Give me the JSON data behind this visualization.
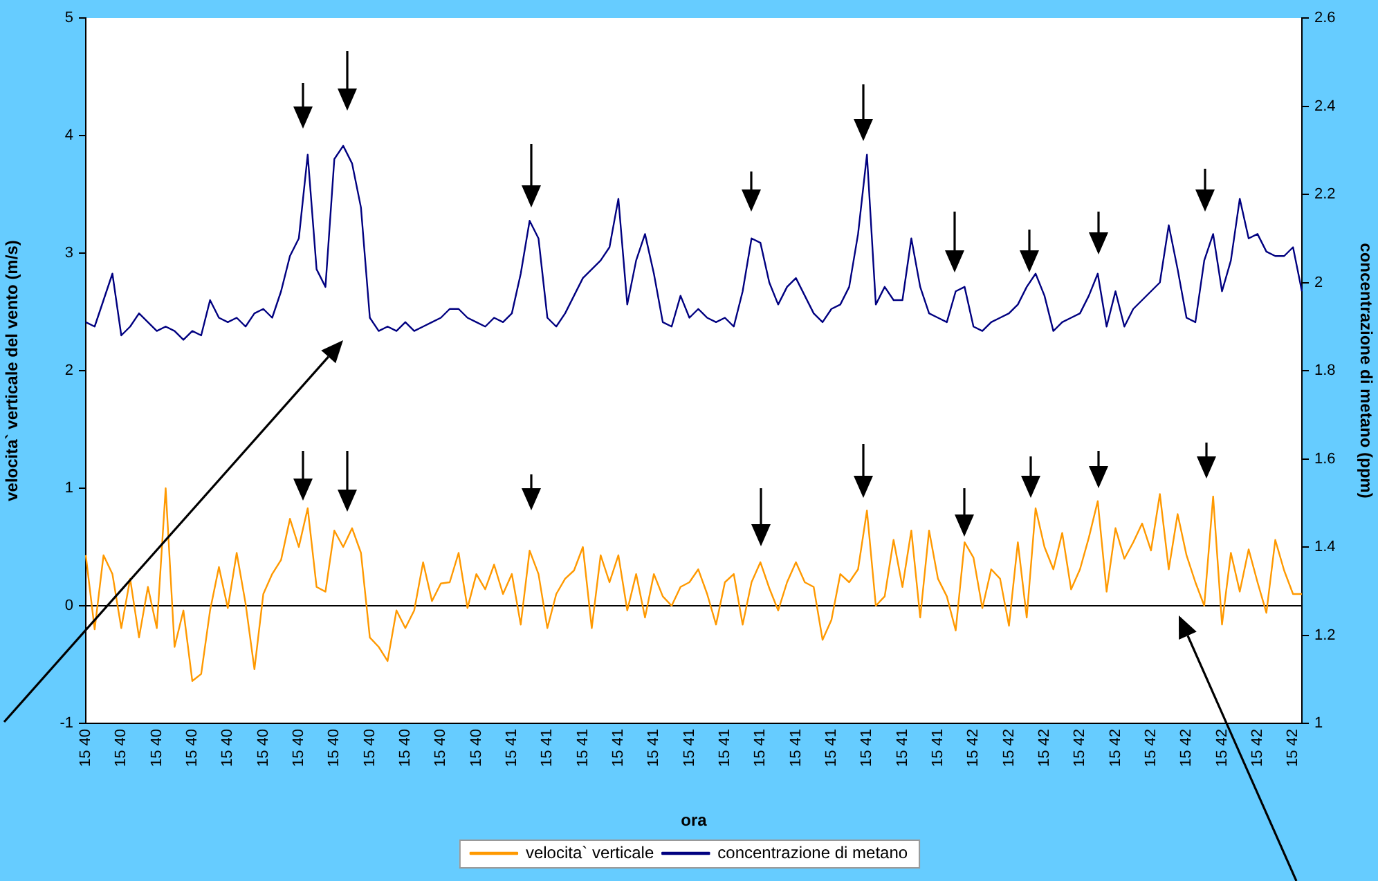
{
  "chart_data": {
    "type": "line",
    "xlabel": "ora",
    "ylabel": "velocita` verticale del vento (m/s)",
    "y2label": "concentrazione di metano (ppm)",
    "categories": [
      "15 40",
      null,
      null,
      null,
      "15 40",
      null,
      null,
      null,
      "15 40",
      null,
      null,
      null,
      "15 40",
      null,
      null,
      null,
      "15 40",
      null,
      null,
      null,
      "15 40",
      null,
      null,
      null,
      "15 40",
      null,
      null,
      null,
      "15 40",
      null,
      null,
      null,
      "15 40",
      null,
      null,
      null,
      "15 40",
      null,
      null,
      null,
      "15 40",
      null,
      null,
      null,
      "15 40",
      null,
      null,
      null,
      "15 41",
      null,
      null,
      null,
      "15 41",
      null,
      null,
      null,
      "15 41",
      null,
      null,
      null,
      "15 41",
      null,
      null,
      null,
      "15 41",
      null,
      null,
      null,
      "15 41",
      null,
      null,
      null,
      "15 41",
      null,
      null,
      null,
      "15 41",
      null,
      null,
      null,
      "15 41",
      null,
      null,
      null,
      "15 41",
      null,
      null,
      null,
      "15 41",
      null,
      null,
      null,
      "15 41",
      null,
      null,
      null,
      "15 41",
      null,
      null,
      null,
      "15 42",
      null,
      null,
      null,
      "15 42",
      null,
      null,
      null,
      "15 42",
      null,
      null,
      null,
      "15 42",
      null,
      null,
      null,
      "15 42",
      null,
      null,
      null,
      "15 42",
      null,
      null,
      null,
      "15 42",
      null,
      null,
      null,
      "15 42",
      null,
      null,
      null,
      "15 42",
      null,
      null,
      null,
      "15 42",
      null
    ],
    "series": [
      {
        "name": "velocita` verticale",
        "color": "#ff9900",
        "axis": "y",
        "values": [
          0.43,
          -0.2,
          0.43,
          0.27,
          -0.19,
          0.23,
          -0.27,
          0.16,
          -0.19,
          1.0,
          -0.35,
          -0.04,
          -0.64,
          -0.58,
          -0.04,
          0.33,
          -0.02,
          0.45,
          0.02,
          -0.54,
          0.1,
          0.27,
          0.39,
          0.74,
          0.5,
          0.83,
          0.16,
          0.12,
          0.64,
          0.5,
          0.66,
          0.45,
          -0.27,
          -0.35,
          -0.47,
          -0.04,
          -0.19,
          -0.04,
          0.37,
          0.04,
          0.19,
          0.2,
          0.45,
          -0.02,
          0.27,
          0.14,
          0.35,
          0.1,
          0.27,
          -0.16,
          0.47,
          0.27,
          -0.19,
          0.1,
          0.23,
          0.3,
          0.5,
          -0.19,
          0.43,
          0.2,
          0.43,
          -0.04,
          0.27,
          -0.1,
          0.27,
          0.08,
          0,
          0.16,
          0.2,
          0.31,
          0.1,
          -0.16,
          0.2,
          0.27,
          -0.16,
          0.2,
          0.37,
          0.15,
          -0.04,
          0.2,
          0.37,
          0.2,
          0.16,
          -0.29,
          -0.12,
          0.27,
          0.2,
          0.31,
          0.81,
          0,
          0.08,
          0.56,
          0.16,
          0.64,
          -0.1,
          0.64,
          0.23,
          0.08,
          -0.21,
          0.54,
          0.41,
          -0.02,
          0.31,
          0.23,
          -0.17,
          0.54,
          -0.1,
          0.83,
          0.5,
          0.31,
          0.62,
          0.14,
          0.31,
          0.58,
          0.89,
          0.12,
          0.66,
          0.4,
          0.54,
          0.7,
          0.47,
          0.95,
          0.31,
          0.78,
          0.43,
          0.2,
          0,
          0.93,
          -0.16,
          0.45,
          0.12,
          0.48,
          0.2,
          -0.06,
          0.56,
          0.3,
          0.1,
          0.1
        ]
      },
      {
        "name": "concentrazione di metano",
        "color": "#000080",
        "axis": "y2",
        "values": [
          1.91,
          1.9,
          1.96,
          2.02,
          1.88,
          1.9,
          1.93,
          1.91,
          1.89,
          1.9,
          1.89,
          1.87,
          1.89,
          1.88,
          1.96,
          1.92,
          1.91,
          1.92,
          1.9,
          1.93,
          1.94,
          1.92,
          1.98,
          2.06,
          2.1,
          2.29,
          2.03,
          1.99,
          2.28,
          2.31,
          2.27,
          2.17,
          1.92,
          1.89,
          1.9,
          1.89,
          1.91,
          1.89,
          1.9,
          1.91,
          1.92,
          1.94,
          1.94,
          1.92,
          1.91,
          1.9,
          1.92,
          1.91,
          1.93,
          2.02,
          2.14,
          2.1,
          1.92,
          1.9,
          1.93,
          1.97,
          2.01,
          2.03,
          2.05,
          2.08,
          2.19,
          1.95,
          2.05,
          2.11,
          2.02,
          1.91,
          1.9,
          1.97,
          1.92,
          1.94,
          1.92,
          1.91,
          1.92,
          1.9,
          1.98,
          2.1,
          2.09,
          2.0,
          1.95,
          1.99,
          2.01,
          1.97,
          1.93,
          1.91,
          1.94,
          1.95,
          1.99,
          2.11,
          2.29,
          1.95,
          1.99,
          1.96,
          1.96,
          2.1,
          1.99,
          1.93,
          1.92,
          1.91,
          1.98,
          1.99,
          1.9,
          1.89,
          1.91,
          1.92,
          1.93,
          1.95,
          1.99,
          2.02,
          1.97,
          1.89,
          1.91,
          1.92,
          1.93,
          1.97,
          2.02,
          1.9,
          1.98,
          1.9,
          1.94,
          1.96,
          1.98,
          2.0,
          2.13,
          2.03,
          1.92,
          1.91,
          2.05,
          2.11,
          1.98,
          2.05,
          2.19,
          2.1,
          2.11,
          2.07,
          2.06,
          2.06,
          2.08,
          1.98
        ]
      }
    ],
    "ylim": [
      -1,
      5
    ],
    "yticks": [
      -1,
      0,
      1,
      2,
      3,
      4,
      5
    ],
    "y2lim": [
      1,
      2.6
    ],
    "y2ticks": [
      1,
      1.2,
      1.4,
      1.6,
      1.8,
      2,
      2.2,
      2.4,
      2.6
    ],
    "ref_lines": [
      {
        "axis": "y",
        "value": 0,
        "color": "#000000"
      }
    ],
    "legend": "bottom",
    "marker": "none",
    "line_style": "solid"
  }
}
